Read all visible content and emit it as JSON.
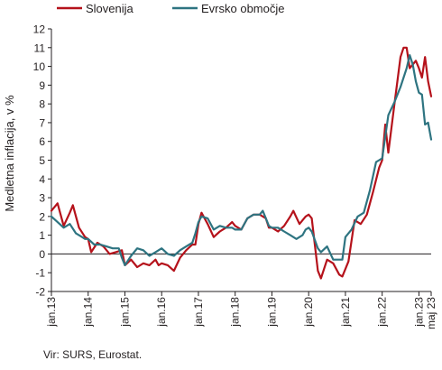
{
  "chart_data": {
    "type": "line",
    "ylabel": "Medletna inflacija, v %",
    "ylim": [
      -2,
      12
    ],
    "yticks": [
      -2,
      -1,
      0,
      1,
      2,
      3,
      4,
      5,
      6,
      7,
      8,
      9,
      10,
      11,
      12
    ],
    "xticks": [
      "jan.13",
      "jan.14",
      "jan.15",
      "jan.16",
      "jan.17",
      "jan.18",
      "jan.19",
      "jan.20",
      "jan.21",
      "jan.22",
      "jan.23",
      "maj 23"
    ],
    "xlim": [
      "2013-01",
      "2023-05"
    ],
    "legend_position": "top",
    "grid": false,
    "series": [
      {
        "name": "Slovenija",
        "color": "#b5121b",
        "points": [
          [
            "2013-01",
            2.3
          ],
          [
            "2013-03",
            2.7
          ],
          [
            "2013-05",
            1.5
          ],
          [
            "2013-07",
            2.2
          ],
          [
            "2013-08",
            2.6
          ],
          [
            "2013-10",
            1.4
          ],
          [
            "2013-12",
            0.9
          ],
          [
            "2014-01",
            0.8
          ],
          [
            "2014-02",
            0.1
          ],
          [
            "2014-04",
            0.6
          ],
          [
            "2014-06",
            0.4
          ],
          [
            "2014-08",
            0.0
          ],
          [
            "2014-10",
            0.1
          ],
          [
            "2014-12",
            0.2
          ],
          [
            "2015-01",
            -0.6
          ],
          [
            "2015-03",
            -0.3
          ],
          [
            "2015-05",
            -0.7
          ],
          [
            "2015-07",
            -0.5
          ],
          [
            "2015-09",
            -0.6
          ],
          [
            "2015-11",
            -0.3
          ],
          [
            "2015-12",
            -0.6
          ],
          [
            "2016-01",
            -0.5
          ],
          [
            "2016-03",
            -0.6
          ],
          [
            "2016-05",
            -0.9
          ],
          [
            "2016-07",
            -0.2
          ],
          [
            "2016-09",
            0.2
          ],
          [
            "2016-11",
            0.5
          ],
          [
            "2016-12",
            0.5
          ],
          [
            "2017-01",
            1.6
          ],
          [
            "2017-02",
            2.2
          ],
          [
            "2017-04",
            1.6
          ],
          [
            "2017-06",
            0.9
          ],
          [
            "2017-08",
            1.2
          ],
          [
            "2017-10",
            1.4
          ],
          [
            "2017-12",
            1.7
          ],
          [
            "2018-01",
            1.5
          ],
          [
            "2018-03",
            1.3
          ],
          [
            "2018-05",
            1.9
          ],
          [
            "2018-07",
            2.1
          ],
          [
            "2018-09",
            2.1
          ],
          [
            "2018-11",
            1.9
          ],
          [
            "2018-12",
            1.4
          ],
          [
            "2019-01",
            1.4
          ],
          [
            "2019-03",
            1.2
          ],
          [
            "2019-05",
            1.5
          ],
          [
            "2019-07",
            2.0
          ],
          [
            "2019-08",
            2.3
          ],
          [
            "2019-10",
            1.6
          ],
          [
            "2019-12",
            2.0
          ],
          [
            "2020-01",
            2.1
          ],
          [
            "2020-02",
            1.9
          ],
          [
            "2020-04",
            -0.9
          ],
          [
            "2020-05",
            -1.3
          ],
          [
            "2020-07",
            -0.3
          ],
          [
            "2020-09",
            -0.5
          ],
          [
            "2020-11",
            -1.1
          ],
          [
            "2020-12",
            -1.2
          ],
          [
            "2021-01",
            -0.8
          ],
          [
            "2021-02",
            -0.4
          ],
          [
            "2021-04",
            1.8
          ],
          [
            "2021-06",
            1.6
          ],
          [
            "2021-08",
            2.1
          ],
          [
            "2021-10",
            3.3
          ],
          [
            "2021-12",
            4.6
          ],
          [
            "2022-01",
            5.0
          ],
          [
            "2022-02",
            6.9
          ],
          [
            "2022-03",
            5.4
          ],
          [
            "2022-05",
            8.0
          ],
          [
            "2022-07",
            10.5
          ],
          [
            "2022-08",
            11.0
          ],
          [
            "2022-09",
            11.0
          ],
          [
            "2022-10",
            9.9
          ],
          [
            "2022-11",
            10.1
          ],
          [
            "2022-12",
            10.3
          ],
          [
            "2023-01",
            9.9
          ],
          [
            "2023-02",
            9.4
          ],
          [
            "2023-03",
            10.5
          ],
          [
            "2023-04",
            9.2
          ],
          [
            "2023-05",
            8.4
          ]
        ]
      },
      {
        "name": "Evrsko območje",
        "color": "#2e7481",
        "points": [
          [
            "2013-01",
            2.0
          ],
          [
            "2013-03",
            1.7
          ],
          [
            "2013-05",
            1.4
          ],
          [
            "2013-07",
            1.6
          ],
          [
            "2013-09",
            1.1
          ],
          [
            "2013-11",
            0.9
          ],
          [
            "2013-12",
            0.8
          ],
          [
            "2014-01",
            0.8
          ],
          [
            "2014-03",
            0.5
          ],
          [
            "2014-05",
            0.5
          ],
          [
            "2014-07",
            0.4
          ],
          [
            "2014-09",
            0.3
          ],
          [
            "2014-11",
            0.3
          ],
          [
            "2014-12",
            -0.2
          ],
          [
            "2015-01",
            -0.6
          ],
          [
            "2015-03",
            -0.1
          ],
          [
            "2015-05",
            0.3
          ],
          [
            "2015-07",
            0.2
          ],
          [
            "2015-09",
            -0.1
          ],
          [
            "2015-11",
            0.1
          ],
          [
            "2015-12",
            0.2
          ],
          [
            "2016-01",
            0.3
          ],
          [
            "2016-03",
            0.0
          ],
          [
            "2016-05",
            -0.1
          ],
          [
            "2016-07",
            0.2
          ],
          [
            "2016-09",
            0.4
          ],
          [
            "2016-11",
            0.6
          ],
          [
            "2016-12",
            1.1
          ],
          [
            "2017-01",
            1.7
          ],
          [
            "2017-02",
            2.0
          ],
          [
            "2017-04",
            1.9
          ],
          [
            "2017-06",
            1.3
          ],
          [
            "2017-08",
            1.5
          ],
          [
            "2017-10",
            1.4
          ],
          [
            "2017-12",
            1.4
          ],
          [
            "2018-01",
            1.3
          ],
          [
            "2018-03",
            1.3
          ],
          [
            "2018-05",
            1.9
          ],
          [
            "2018-07",
            2.1
          ],
          [
            "2018-09",
            2.1
          ],
          [
            "2018-10",
            2.3
          ],
          [
            "2018-12",
            1.5
          ],
          [
            "2019-01",
            1.4
          ],
          [
            "2019-03",
            1.4
          ],
          [
            "2019-05",
            1.2
          ],
          [
            "2019-07",
            1.0
          ],
          [
            "2019-09",
            0.8
          ],
          [
            "2019-11",
            1.0
          ],
          [
            "2019-12",
            1.3
          ],
          [
            "2020-01",
            1.4
          ],
          [
            "2020-02",
            1.2
          ],
          [
            "2020-04",
            0.3
          ],
          [
            "2020-05",
            0.1
          ],
          [
            "2020-07",
            0.4
          ],
          [
            "2020-09",
            -0.3
          ],
          [
            "2020-11",
            -0.3
          ],
          [
            "2020-12",
            -0.3
          ],
          [
            "2021-01",
            0.9
          ],
          [
            "2021-03",
            1.3
          ],
          [
            "2021-05",
            2.0
          ],
          [
            "2021-07",
            2.2
          ],
          [
            "2021-09",
            3.4
          ],
          [
            "2021-11",
            4.9
          ],
          [
            "2021-12",
            5.0
          ],
          [
            "2022-01",
            5.1
          ],
          [
            "2022-03",
            7.4
          ],
          [
            "2022-05",
            8.1
          ],
          [
            "2022-07",
            8.9
          ],
          [
            "2022-09",
            9.9
          ],
          [
            "2022-10",
            10.6
          ],
          [
            "2022-11",
            10.1
          ],
          [
            "2022-12",
            9.2
          ],
          [
            "2023-01",
            8.6
          ],
          [
            "2023-02",
            8.5
          ],
          [
            "2023-03",
            6.9
          ],
          [
            "2023-04",
            7.0
          ],
          [
            "2023-05",
            6.1
          ]
        ]
      }
    ],
    "source": "Vir: SURS, Eurostat."
  }
}
